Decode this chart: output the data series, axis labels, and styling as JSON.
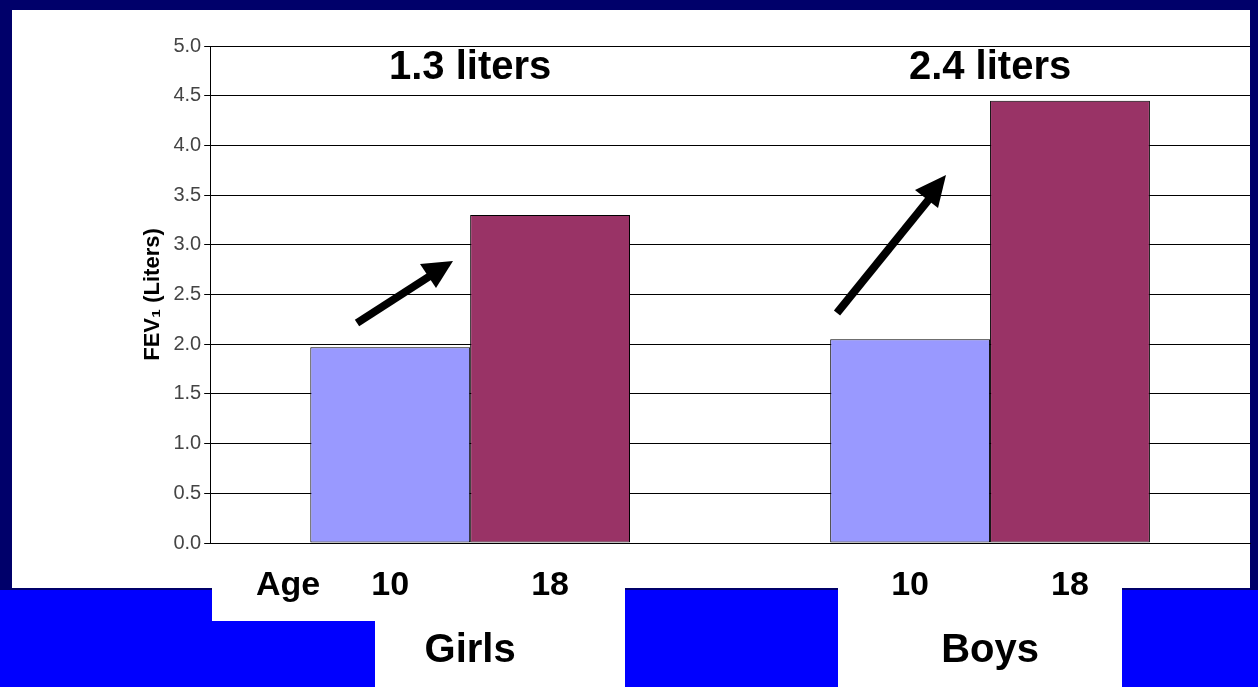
{
  "chart_data": {
    "type": "bar",
    "ylabel": "FEV₁ (Liters)",
    "legend_title": "Age",
    "categories": [
      "Girls",
      "Boys"
    ],
    "series": [
      {
        "name": "10",
        "color": "#9999ff",
        "values": [
          1.97,
          2.05
        ]
      },
      {
        "name": "18",
        "color": "#993366",
        "values": [
          3.3,
          4.45
        ]
      }
    ],
    "ylim": [
      0,
      5
    ],
    "yticks": [
      {
        "value": 0,
        "label": "0.0"
      },
      {
        "value": 0.5,
        "label": "0.5"
      },
      {
        "value": 1,
        "label": "1.0"
      },
      {
        "value": 1.5,
        "label": "1.5"
      },
      {
        "value": 2,
        "label": "2.0"
      },
      {
        "value": 2.5,
        "label": "2.5"
      },
      {
        "value": 3,
        "label": "3.0"
      },
      {
        "value": 3.5,
        "label": "3.5"
      },
      {
        "value": 4,
        "label": "4.0"
      },
      {
        "value": 4.5,
        "label": "4.5"
      },
      {
        "value": 5,
        "label": "5.0"
      }
    ],
    "grid": "y",
    "legend": false,
    "annotations": [
      "1.3 liters",
      "2.4 liters"
    ]
  }
}
